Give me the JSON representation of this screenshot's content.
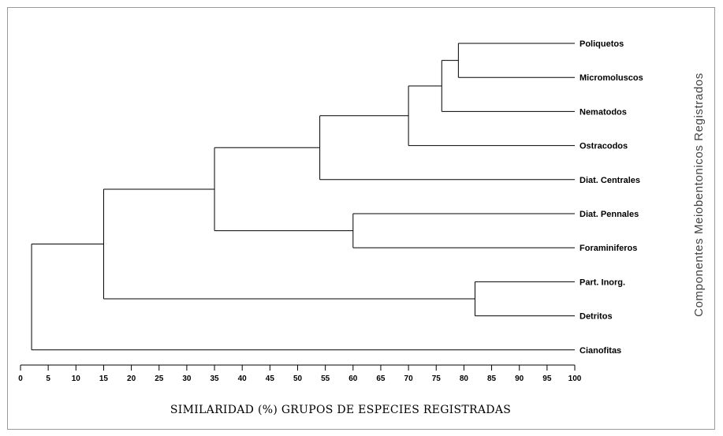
{
  "chart_data": {
    "type": "dendrogram",
    "xlabel": "SIMILARIDAD (%)  GRUPOS DE ESPECIES REGISTRADAS",
    "ylabel": "Componentes Meiobentonicos Registrados",
    "xlim": [
      0,
      100
    ],
    "xticks": [
      0,
      5,
      10,
      15,
      20,
      25,
      30,
      35,
      40,
      45,
      50,
      55,
      60,
      65,
      70,
      75,
      80,
      85,
      90,
      95,
      100
    ],
    "leaves": [
      "Poliquetos",
      "Micromoluscos",
      "Nematodos",
      "Ostracodos",
      "Diat. Centrales",
      "Diat. Pennales",
      "Foraminiferos",
      "Part. Inorg.",
      "Detritos",
      "Cianofitas"
    ],
    "merges": [
      {
        "a": "Poliquetos",
        "b": "Micromoluscos",
        "similarity": 79
      },
      {
        "a": "Poliquetos + Micromoluscos",
        "b": "Nematodos",
        "similarity": 76
      },
      {
        "a": "Poliquetos + Micromoluscos + Nematodos",
        "b": "Ostracodos",
        "similarity": 70
      },
      {
        "a": "Diat. Pennales",
        "b": "Foraminiferos",
        "similarity": 60
      },
      {
        "a": "Poliquetos + Micromoluscos + Nematodos + Ostracodos",
        "b": "Diat. Centrales",
        "similarity": 54
      },
      {
        "a": "Poliquetos ... Diat. Centrales",
        "b": "Diat. Pennales + Foraminiferos",
        "similarity": 35
      },
      {
        "a": "Part. Inorg.",
        "b": "Detritos",
        "similarity": 82
      },
      {
        "a": "Poliquetos ... Foraminiferos",
        "b": "Part. Inorg. + Detritos",
        "similarity": 15
      },
      {
        "a": "Poliquetos ... Detritos",
        "b": "Cianofitas",
        "similarity": 2
      }
    ]
  }
}
